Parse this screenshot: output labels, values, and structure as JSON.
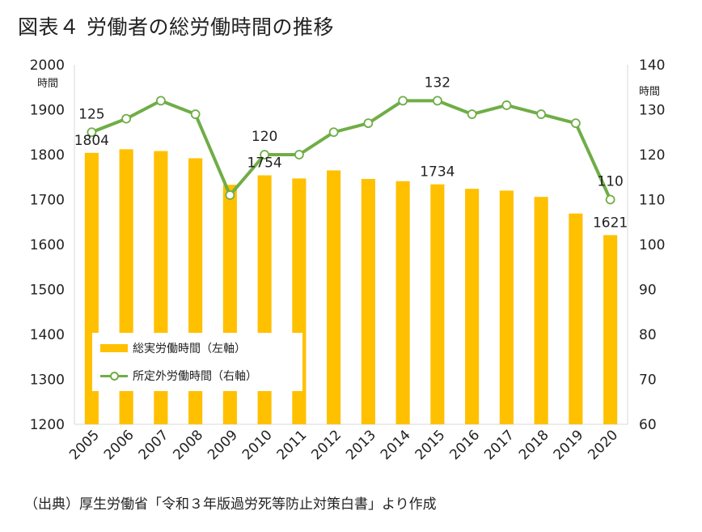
{
  "title": "図表４ 労働者の総労働時間の推移",
  "source": "（出典）厚生労働省「令和３年版過労死等防止対策白書」より作成",
  "chart_data": {
    "type": "bar",
    "categories": [
      "2005",
      "2006",
      "2007",
      "2008",
      "2009",
      "2010",
      "2011",
      "2012",
      "2013",
      "2014",
      "2015",
      "2016",
      "2017",
      "2018",
      "2019",
      "2020"
    ],
    "series": [
      {
        "name": "総実労働時間（左軸）",
        "type": "bar",
        "axis": "left",
        "color": "#FFC000",
        "values": [
          1804,
          1812,
          1808,
          1792,
          1733,
          1754,
          1747,
          1765,
          1746,
          1741,
          1734,
          1724,
          1720,
          1706,
          1669,
          1621
        ]
      },
      {
        "name": "所定外労働時間（右軸）",
        "type": "line",
        "axis": "right",
        "color": "#70AD47",
        "values": [
          125,
          128,
          132,
          129,
          111,
          120,
          120,
          125,
          127,
          132,
          132,
          129,
          131,
          129,
          127,
          110
        ]
      }
    ],
    "data_labels": {
      "bar": [
        {
          "index": 0,
          "text": "1804"
        },
        {
          "index": 5,
          "text": "1754"
        },
        {
          "index": 10,
          "text": "1734"
        },
        {
          "index": 15,
          "text": "1621"
        }
      ],
      "line": [
        {
          "index": 0,
          "text": "125"
        },
        {
          "index": 5,
          "text": "120"
        },
        {
          "index": 10,
          "text": "132"
        },
        {
          "index": 15,
          "text": "110"
        }
      ]
    },
    "left_axis": {
      "label": "時間",
      "ylim": [
        1200,
        2000
      ],
      "ticks": [
        1200,
        1300,
        1400,
        1500,
        1600,
        1700,
        1800,
        1900,
        2000
      ]
    },
    "right_axis": {
      "label": "時間",
      "ylim": [
        60,
        140
      ],
      "ticks": [
        60,
        70,
        80,
        90,
        100,
        110,
        120,
        130,
        140
      ]
    },
    "grid": false,
    "legend": "bottom-left"
  }
}
